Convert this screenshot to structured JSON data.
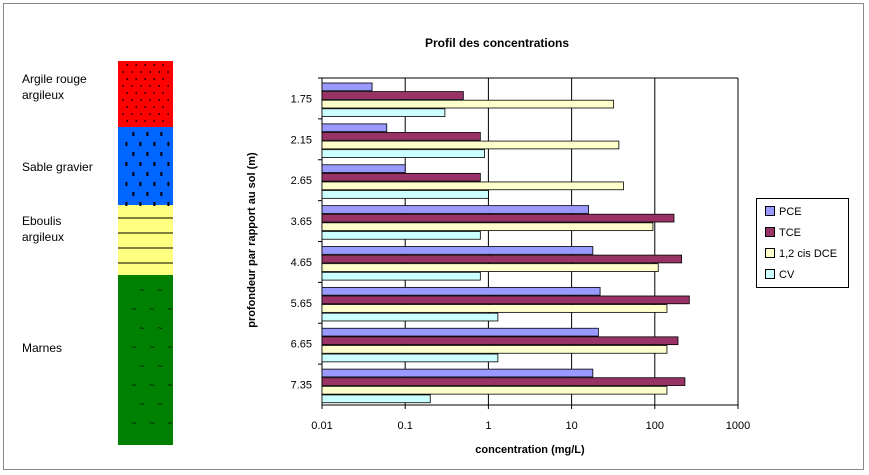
{
  "soil_column": {
    "layers": [
      {
        "name": "Argile  rouge argileux",
        "color": "#ff0000"
      },
      {
        "name": "Sable gravier",
        "color": "#0066ff"
      },
      {
        "name": "Eboulis argileux",
        "color": "#ffff80"
      },
      {
        "name": "Marnes",
        "color": "#008000"
      }
    ]
  },
  "chart_data": {
    "type": "bar",
    "orientation": "horizontal",
    "title": "Profil des concentrations",
    "xlabel": "concentration (mg/L)",
    "ylabel": "profondeur par rapport au sol  (m)",
    "x_scale": "log",
    "xlim": [
      0.01,
      1000
    ],
    "x_ticks": [
      "0.01",
      "0.1",
      "1",
      "10",
      "100",
      "1000"
    ],
    "categories": [
      "1.75",
      "2.15",
      "2.65",
      "3.65",
      "4.65",
      "5.65",
      "6.65",
      "7.35"
    ],
    "series": [
      {
        "name": "PCE",
        "color": "#9999ff",
        "values": [
          0.04,
          0.06,
          0.1,
          16,
          18,
          22,
          21,
          18
        ]
      },
      {
        "name": "TCE",
        "color": "#993366",
        "values": [
          0.5,
          0.8,
          0.8,
          170,
          210,
          260,
          190,
          230
        ]
      },
      {
        "name": "1,2 cis DCE",
        "color": "#ffffcc",
        "values": [
          32,
          37,
          42,
          95,
          110,
          140,
          140,
          140
        ]
      },
      {
        "name": "CV",
        "color": "#ccffff",
        "values": [
          0.3,
          0.9,
          1.0,
          0.8,
          0.8,
          1.3,
          1.3,
          0.2
        ]
      }
    ],
    "grid": "vertical major",
    "legend_position": "right"
  }
}
